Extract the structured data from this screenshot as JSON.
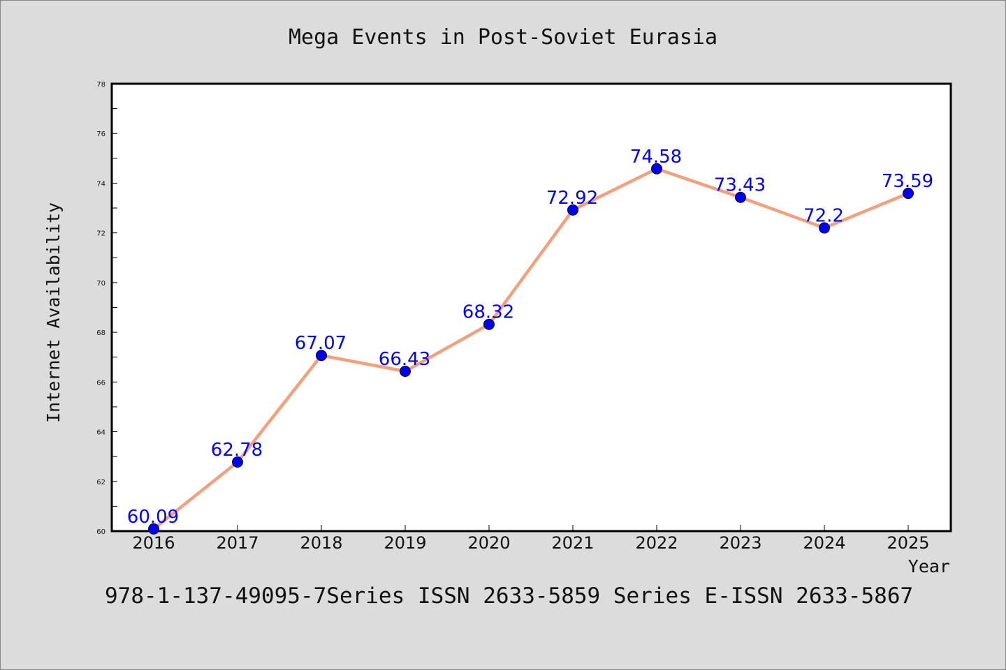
{
  "chart_data": {
    "type": "line",
    "title": "Mega Events in Post-Soviet Eurasia",
    "xlabel": "Year",
    "ylabel": "Internet Availability",
    "categories": [
      "2016",
      "2017",
      "2018",
      "2019",
      "2020",
      "2021",
      "2022",
      "2023",
      "2024",
      "2025"
    ],
    "series": [
      {
        "values": [
          60.09,
          62.78,
          67.07,
          66.43,
          68.32,
          72.92,
          74.58,
          73.43,
          72.2,
          73.59
        ],
        "labels": [
          "60.09",
          "62.78",
          "67.07",
          "66.43",
          "68.32",
          "72.92",
          "74.58",
          "73.43",
          "72.2",
          "73.59"
        ],
        "line_color": "#f4a07c",
        "marker_color": "#0000ee",
        "label_color": "#0000ff"
      }
    ],
    "ylim": [
      60,
      78
    ],
    "yticks": [
      "60",
      "62",
      "64",
      "66",
      "68",
      "70",
      "72",
      "74",
      "76",
      "78"
    ],
    "grid": false,
    "background": "#dcdcdc",
    "plot_background": "#ffffff"
  },
  "footer": {
    "text": "978-1-137-49095-7Series ISSN 2633-5859 Series E-ISSN 2633-5867"
  }
}
